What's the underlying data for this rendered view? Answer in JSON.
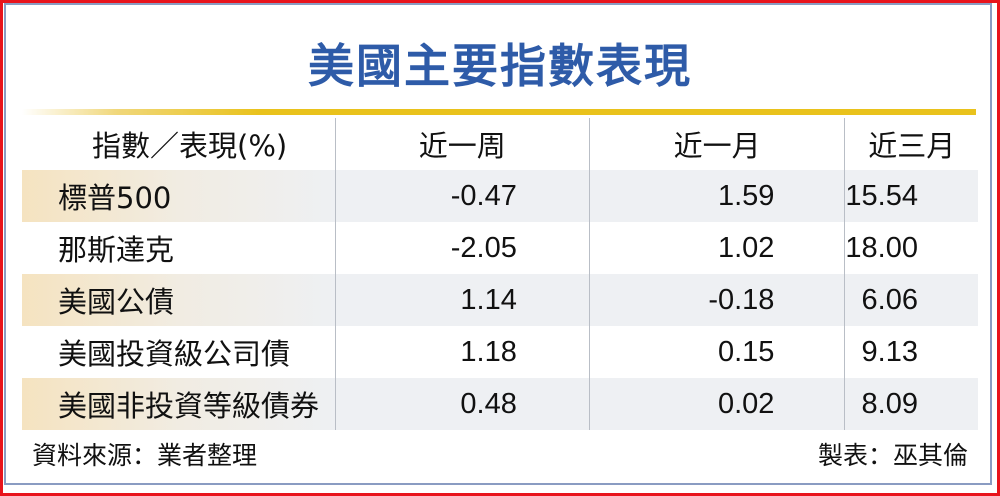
{
  "title": "美國主要指數表現",
  "chart_data": {
    "type": "table",
    "title": "美國主要指數表現",
    "columns": [
      "指數／表現(%)",
      "近一周",
      "近一月",
      "近三月"
    ],
    "rows": [
      {
        "name": "標普500",
        "values": [
          "-0.47",
          "1.59",
          "15.54"
        ]
      },
      {
        "name": "那斯達克",
        "values": [
          "-2.05",
          "1.02",
          "18.00"
        ]
      },
      {
        "name": "美國公債",
        "values": [
          "1.14",
          "-0.18",
          "6.06"
        ]
      },
      {
        "name": "美國投資級公司債",
        "values": [
          "1.18",
          "0.15",
          "9.13"
        ]
      },
      {
        "name": "美國非投資等級債券",
        "values": [
          "0.48",
          "0.02",
          "8.09"
        ]
      }
    ]
  },
  "footer": {
    "source": "資料來源：業者整理",
    "maker": "製表：巫其倫"
  },
  "colors": {
    "title": "#2e5ba8",
    "gold_rule": "#e9c21c",
    "frame": "#e8141c"
  }
}
